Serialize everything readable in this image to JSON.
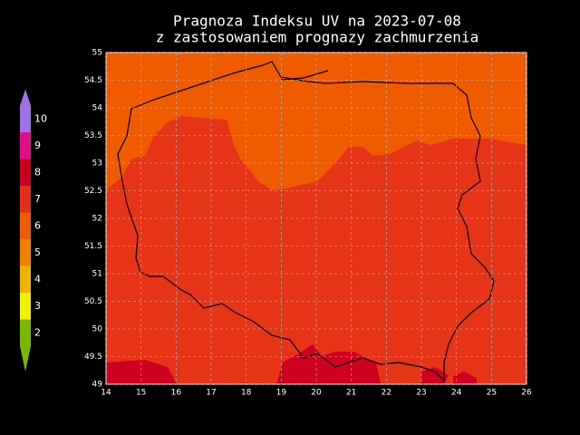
{
  "chart_data": {
    "type": "map",
    "title": "Pragnoza Indeksu UV na 2023-07-08",
    "subtitle": "z zastosowaniem prognazy zachmurzenia",
    "xlim": [
      14,
      26
    ],
    "xticks": [
      14,
      15,
      16,
      17,
      18,
      19,
      20,
      21,
      22,
      23,
      24,
      25,
      26
    ],
    "ylim": [
      49,
      55
    ],
    "yticks": [
      49,
      49.5,
      50,
      50.5,
      51,
      51.5,
      52,
      52.5,
      53,
      53.5,
      54,
      54.5,
      55
    ],
    "grid": true,
    "colorbar": {
      "labels": [
        2,
        3,
        4,
        5,
        6,
        7,
        8,
        9,
        10
      ],
      "colors": [
        "#78b800",
        "#f0f000",
        "#f0b400",
        "#f08000",
        "#f05a00",
        "#e0301a",
        "#c8001e",
        "#e0108c",
        "#a070e8"
      ]
    }
  }
}
